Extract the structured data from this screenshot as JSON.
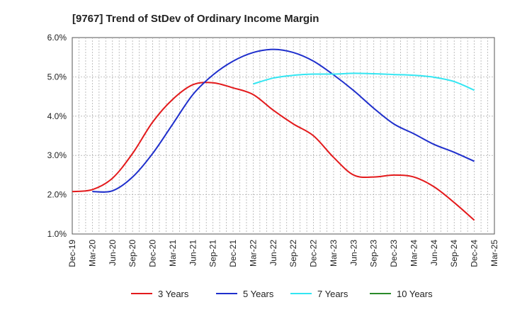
{
  "chart_data": {
    "type": "line",
    "title": "[9767]  Trend of StDev of Ordinary Income Margin",
    "xlabel": "",
    "ylabel": "",
    "x_ticks": [
      "Dec-19",
      "Mar-20",
      "Jun-20",
      "Sep-20",
      "Dec-20",
      "Mar-21",
      "Jun-21",
      "Sep-21",
      "Dec-21",
      "Mar-22",
      "Jun-22",
      "Sep-22",
      "Dec-22",
      "Mar-23",
      "Jun-23",
      "Sep-23",
      "Dec-23",
      "Mar-24",
      "Jun-24",
      "Sep-24",
      "Dec-24",
      "Mar-25"
    ],
    "y_ticks": [
      "1.0%",
      "2.0%",
      "3.0%",
      "4.0%",
      "5.0%",
      "6.0%"
    ],
    "ylim": [
      1.0,
      6.0
    ],
    "grid": true,
    "legend_position": "bottom",
    "series": [
      {
        "name": "3 Years",
        "color": "#e31a1c",
        "values": [
          [
            "Dec-19",
            2.08
          ],
          [
            "Mar-20",
            2.13
          ],
          [
            "Jun-20",
            2.42
          ],
          [
            "Sep-20",
            3.05
          ],
          [
            "Dec-20",
            3.85
          ],
          [
            "Mar-21",
            4.43
          ],
          [
            "Jun-21",
            4.8
          ],
          [
            "Sep-21",
            4.85
          ],
          [
            "Dec-21",
            4.72
          ],
          [
            "Mar-22",
            4.55
          ],
          [
            "Jun-22",
            4.15
          ],
          [
            "Sep-22",
            3.8
          ],
          [
            "Dec-22",
            3.5
          ],
          [
            "Mar-23",
            2.95
          ],
          [
            "Jun-23",
            2.5
          ],
          [
            "Sep-23",
            2.45
          ],
          [
            "Dec-23",
            2.5
          ],
          [
            "Mar-24",
            2.45
          ],
          [
            "Jun-24",
            2.2
          ],
          [
            "Sep-24",
            1.8
          ],
          [
            "Dec-24",
            1.35
          ]
        ]
      },
      {
        "name": "5 Years",
        "color": "#1f2fcc",
        "values": [
          [
            "Mar-20",
            2.08
          ],
          [
            "Jun-20",
            2.1
          ],
          [
            "Sep-20",
            2.45
          ],
          [
            "Dec-20",
            3.05
          ],
          [
            "Mar-21",
            3.8
          ],
          [
            "Jun-21",
            4.55
          ],
          [
            "Sep-21",
            5.05
          ],
          [
            "Dec-21",
            5.4
          ],
          [
            "Mar-22",
            5.62
          ],
          [
            "Jun-22",
            5.7
          ],
          [
            "Sep-22",
            5.62
          ],
          [
            "Dec-22",
            5.4
          ],
          [
            "Mar-23",
            5.05
          ],
          [
            "Jun-23",
            4.65
          ],
          [
            "Sep-23",
            4.2
          ],
          [
            "Dec-23",
            3.8
          ],
          [
            "Mar-24",
            3.55
          ],
          [
            "Jun-24",
            3.28
          ],
          [
            "Sep-24",
            3.08
          ],
          [
            "Dec-24",
            2.85
          ]
        ]
      },
      {
        "name": "7 Years",
        "color": "#33e6f2",
        "values": [
          [
            "Mar-22",
            4.82
          ],
          [
            "Jun-22",
            4.97
          ],
          [
            "Sep-22",
            5.04
          ],
          [
            "Dec-22",
            5.07
          ],
          [
            "Mar-23",
            5.07
          ],
          [
            "Jun-23",
            5.09
          ],
          [
            "Sep-23",
            5.08
          ],
          [
            "Dec-23",
            5.06
          ],
          [
            "Mar-24",
            5.04
          ],
          [
            "Jun-24",
            4.99
          ],
          [
            "Sep-24",
            4.88
          ],
          [
            "Dec-24",
            4.66
          ]
        ]
      },
      {
        "name": "10 Years",
        "color": "#2a8a2a",
        "values": []
      }
    ]
  }
}
